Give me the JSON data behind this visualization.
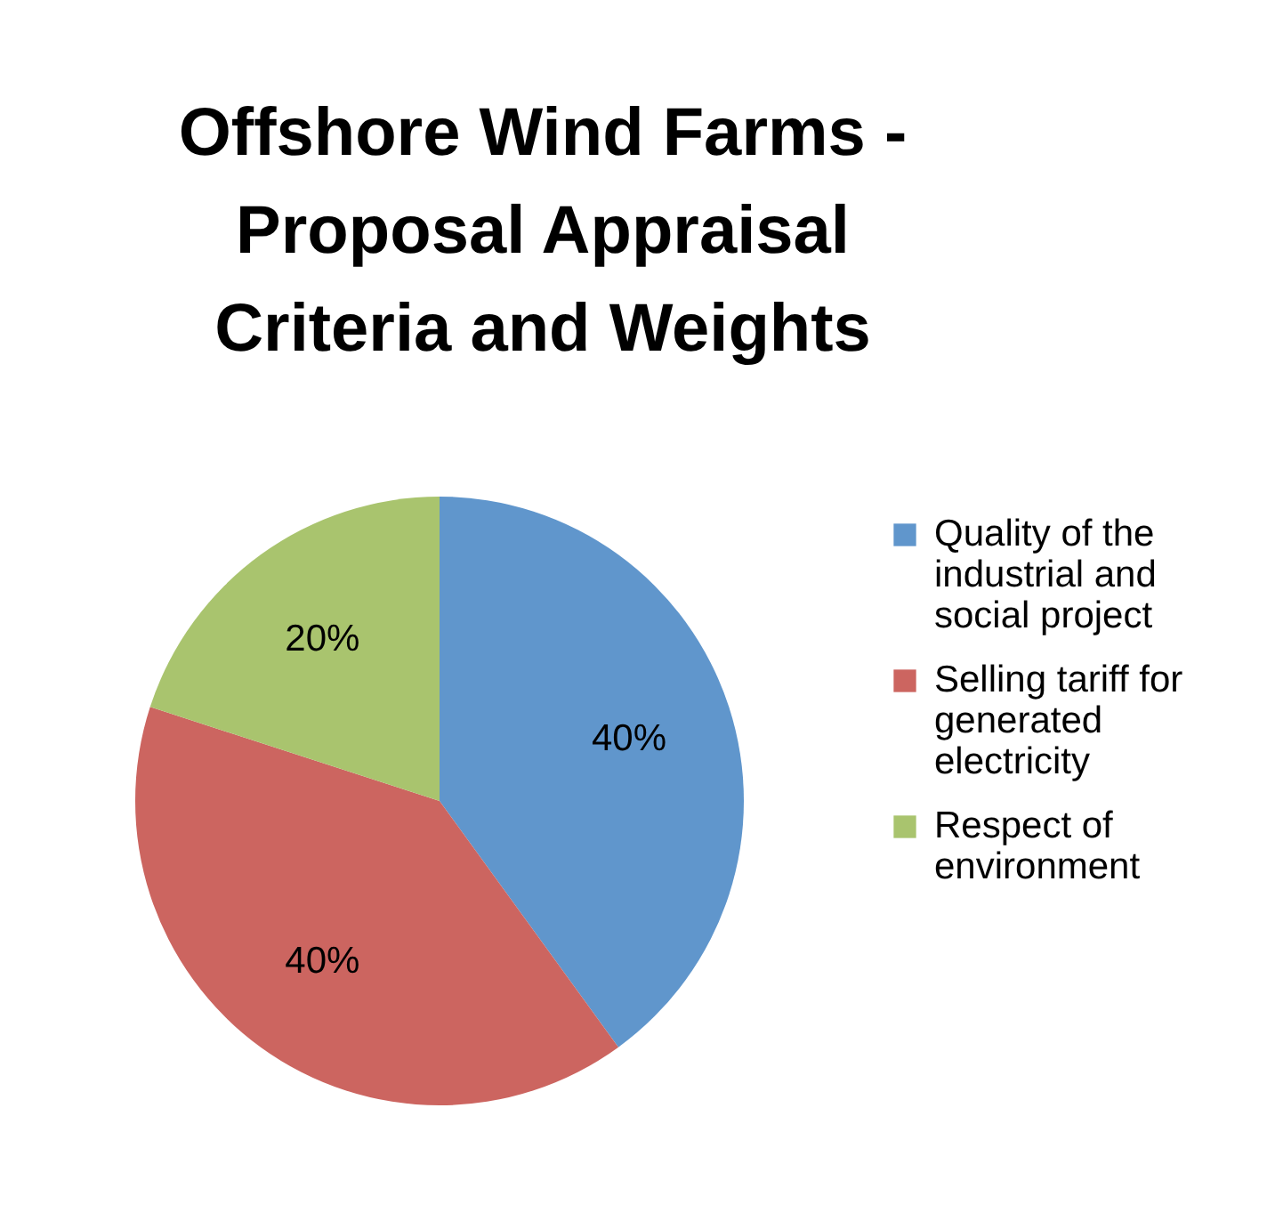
{
  "chart_data": {
    "type": "pie",
    "title": "Offshore Wind Farms - Proposal Appraisal Criteria and Weights",
    "categories": [
      "Quality of the industrial and social project",
      "Selling tariff for generated electricity",
      "Respect of environment"
    ],
    "values": [
      40,
      40,
      20
    ],
    "colors": [
      "#6096cc",
      "#cc6560",
      "#a9c46e"
    ],
    "value_labels": [
      "40%",
      "40%",
      "20%"
    ],
    "legend": "right"
  }
}
